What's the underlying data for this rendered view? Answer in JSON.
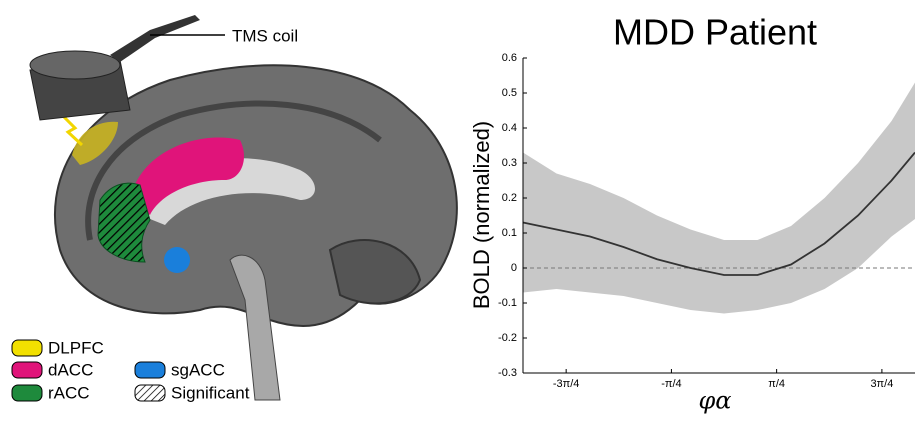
{
  "brain_panel": {
    "annotation": "TMS coil",
    "legend": [
      "DLPFC",
      "dACC",
      "sgACC",
      "rACC",
      "Significant"
    ]
  },
  "chart_data": {
    "type": "line",
    "title": "MDD Patient",
    "y_label": "BOLD (normalized)",
    "x_label": "φα",
    "x": [
      -3.0,
      -2.5,
      -2.0,
      -1.5,
      -1.0,
      -0.5,
      0,
      0.5,
      1.0,
      1.5,
      2.0,
      2.5,
      2.85
    ],
    "series": [
      {
        "color": "#333333",
        "values": [
          0.13,
          0.11,
          0.09,
          0.06,
          0.025,
          0,
          -0.02,
          -0.02,
          0.01,
          0.07,
          0.15,
          0.25,
          0.33
        ],
        "band_upper": [
          0.33,
          0.27,
          0.24,
          0.2,
          0.15,
          0.11,
          0.08,
          0.08,
          0.12,
          0.2,
          0.3,
          0.42,
          0.53
        ],
        "band_lower": [
          -0.07,
          -0.06,
          -0.07,
          -0.08,
          -0.1,
          -0.12,
          -0.13,
          -0.12,
          -0.1,
          -0.06,
          0.0,
          0.09,
          0.14
        ],
        "band_color": "#c8c8c8"
      }
    ],
    "xlim": [
      -3.0,
      2.85
    ],
    "ylim": [
      -0.3,
      0.6
    ],
    "xticks": [
      {
        "value": -2.356,
        "label": "-3π/4"
      },
      {
        "value": -0.785,
        "label": "-π/4"
      },
      {
        "value": 0.785,
        "label": "π/4"
      },
      {
        "value": 2.356,
        "label": "3π/4"
      }
    ],
    "yticks": [
      -0.3,
      -0.2,
      -0.1,
      0,
      0.1,
      0.2,
      0.3,
      0.4,
      0.5,
      0.6
    ],
    "zero_line": true
  }
}
